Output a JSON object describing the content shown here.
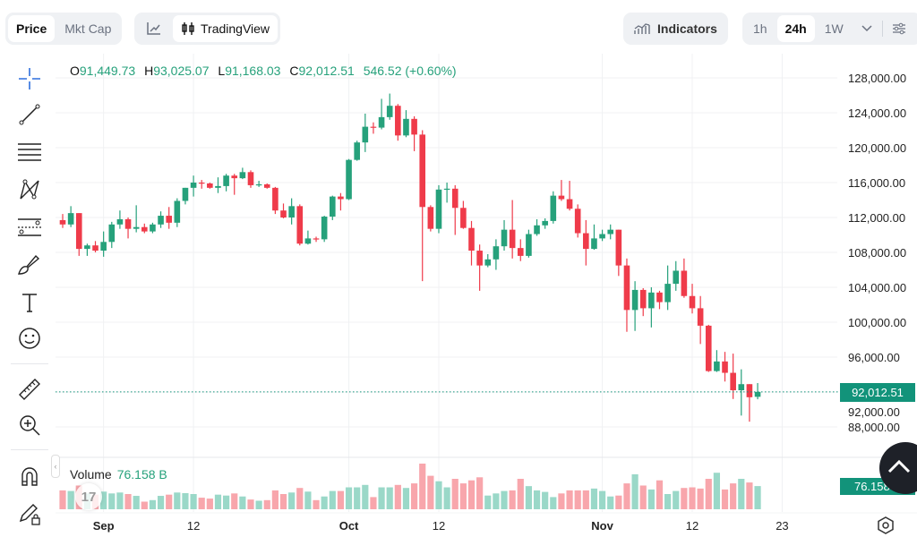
{
  "toolbar": {
    "price_label": "Price",
    "mktcap_label": "Mkt Cap",
    "chart_type_line_icon": "line-chart-icon",
    "tradingview_label": "TradingView",
    "indicators_label": "Indicators",
    "timeframes": [
      "1h",
      "24h",
      "1W"
    ],
    "selected_timeframe": "24h"
  },
  "ohlc": {
    "o_label": "O",
    "o": "91,449.73",
    "h_label": "H",
    "h": "93,025.07",
    "l_label": "L",
    "l": "91,168.03",
    "c_label": "C",
    "c": "92,012.51",
    "change": "546.52 (+0.60%)"
  },
  "volume": {
    "label": "Volume",
    "value": "76.158 B",
    "tag": "76.158 B"
  },
  "last_price_tag": "92,012.51",
  "logo_text": "17",
  "colors": {
    "up": "#26a17b",
    "down": "#ef3b4a",
    "vol_up": "#9ad8c8",
    "vol_down": "#f8a6ac",
    "last_price": "#12937a"
  },
  "chart_data": {
    "type": "candlestick",
    "price_ticks": [
      "128,000.00",
      "124,000.00",
      "120,000.00",
      "116,000.00",
      "112,000.00",
      "108,000.00",
      "104,000.00",
      "100,000.00",
      "96,000.00",
      "92,000.00",
      "88,000.00"
    ],
    "ylim": [
      88000,
      128000
    ],
    "time_ticks": [
      {
        "label": "Sep",
        "date": "Sep 1",
        "bold": true
      },
      {
        "label": "12",
        "date": "Sep 12"
      },
      {
        "label": "Oct",
        "date": "Oct 1",
        "bold": true
      },
      {
        "label": "12",
        "date": "Oct 12"
      },
      {
        "label": "Nov",
        "date": "Nov 1",
        "bold": true
      },
      {
        "label": "12",
        "date": "Nov 12"
      },
      {
        "label": "23",
        "date": "Nov 23"
      }
    ],
    "last_price": 92012.51,
    "candle_fields": [
      "date",
      "open",
      "high",
      "low",
      "close",
      "volume_B"
    ],
    "candles": [
      [
        "Aug 27",
        111700,
        112400,
        110800,
        111200,
        62
      ],
      [
        "Aug 28",
        111200,
        113300,
        110900,
        112500,
        60
      ],
      [
        "Aug 29",
        112500,
        112500,
        107600,
        108400,
        78
      ],
      [
        "Aug 30",
        108400,
        109000,
        107600,
        108800,
        52
      ],
      [
        "Aug 31",
        108800,
        109300,
        108000,
        108200,
        48
      ],
      [
        "Sep 1",
        108200,
        110400,
        107500,
        109200,
        58
      ],
      [
        "Sep 2",
        109200,
        111500,
        108500,
        111200,
        52
      ],
      [
        "Sep 3",
        111200,
        112800,
        110700,
        111800,
        55
      ],
      [
        "Sep 4",
        111800,
        112000,
        109600,
        110700,
        50
      ],
      [
        "Sep 5",
        110700,
        113400,
        110300,
        110900,
        44
      ],
      [
        "Sep 6",
        110900,
        111300,
        110200,
        110400,
        25
      ],
      [
        "Sep 7",
        110400,
        111400,
        110200,
        111200,
        30
      ],
      [
        "Sep 8",
        111200,
        112700,
        110800,
        112200,
        44
      ],
      [
        "Sep 9",
        112200,
        113200,
        110700,
        111400,
        48
      ],
      [
        "Sep 10",
        111400,
        114200,
        110900,
        113900,
        55
      ],
      [
        "Sep 11",
        113900,
        115400,
        113500,
        115400,
        53
      ],
      [
        "Sep 12",
        115400,
        116800,
        114400,
        116000,
        50
      ],
      [
        "Sep 13",
        116000,
        116300,
        115300,
        115900,
        38
      ],
      [
        "Sep 14",
        115900,
        116000,
        115300,
        115400,
        35
      ],
      [
        "Sep 15",
        115400,
        116600,
        114800,
        115600,
        48
      ],
      [
        "Sep 16",
        115600,
        117000,
        115000,
        116800,
        45
      ],
      [
        "Sep 17",
        116800,
        117000,
        114600,
        116500,
        52
      ],
      [
        "Sep 18",
        116500,
        117700,
        116400,
        117200,
        42
      ],
      [
        "Sep 19",
        117200,
        117400,
        115400,
        115700,
        32
      ],
      [
        "Sep 20",
        115700,
        116200,
        115500,
        115800,
        28
      ],
      [
        "Sep 21",
        115800,
        115900,
        115300,
        115400,
        30
      ],
      [
        "Sep 22",
        115400,
        115500,
        112400,
        112800,
        62
      ],
      [
        "Sep 23",
        112800,
        113600,
        111900,
        112000,
        50
      ],
      [
        "Sep 24",
        112000,
        114200,
        111200,
        113300,
        55
      ],
      [
        "Sep 25",
        113300,
        113500,
        108800,
        109000,
        70
      ],
      [
        "Sep 26",
        109000,
        110500,
        108900,
        109600,
        58
      ],
      [
        "Sep 27",
        109600,
        109800,
        109200,
        109500,
        30
      ],
      [
        "Sep 28",
        109500,
        112200,
        109200,
        112100,
        42
      ],
      [
        "Sep 29",
        112100,
        114500,
        111700,
        114400,
        60
      ],
      [
        "Sep 30",
        114400,
        114800,
        112800,
        114100,
        60
      ],
      [
        "Oct 1",
        114100,
        118700,
        114000,
        118600,
        72
      ],
      [
        "Oct 2",
        118600,
        120800,
        118500,
        120600,
        72
      ],
      [
        "Oct 3",
        120600,
        123900,
        119500,
        122400,
        80
      ],
      [
        "Oct 4",
        122400,
        122900,
        121600,
        122300,
        40
      ],
      [
        "Oct 5",
        122300,
        125600,
        122100,
        123500,
        72
      ],
      [
        "Oct 6",
        123500,
        126200,
        123200,
        124800,
        72
      ],
      [
        "Oct 7",
        124800,
        125000,
        120800,
        121400,
        80
      ],
      [
        "Oct 8",
        121400,
        124300,
        121200,
        123300,
        70
      ],
      [
        "Oct 9",
        123300,
        123600,
        119600,
        121500,
        85
      ],
      [
        "Oct 10",
        121500,
        122000,
        104700,
        113200,
        150
      ],
      [
        "Oct 11",
        113200,
        113400,
        110400,
        110700,
        110
      ],
      [
        "Oct 12",
        110700,
        115700,
        110200,
        115200,
        92
      ],
      [
        "Oct 13",
        115200,
        116000,
        113700,
        115300,
        72
      ],
      [
        "Oct 14",
        115300,
        115700,
        110000,
        113100,
        100
      ],
      [
        "Oct 15",
        113100,
        113900,
        110700,
        110800,
        85
      ],
      [
        "Oct 16",
        110800,
        111600,
        106500,
        108200,
        95
      ],
      [
        "Oct 17",
        108200,
        108900,
        103600,
        106500,
        105
      ],
      [
        "Oct 18",
        106500,
        107800,
        106300,
        107200,
        45
      ],
      [
        "Oct 19",
        107200,
        109500,
        106000,
        108700,
        52
      ],
      [
        "Oct 20",
        108700,
        111700,
        108200,
        110600,
        60
      ],
      [
        "Oct 21",
        110600,
        114000,
        107300,
        108500,
        62
      ],
      [
        "Oct 22",
        108500,
        109500,
        107000,
        107600,
        100
      ],
      [
        "Oct 23",
        107600,
        110600,
        107400,
        110100,
        76
      ],
      [
        "Oct 24",
        110100,
        111800,
        109900,
        111100,
        62
      ],
      [
        "Oct 25",
        111100,
        111900,
        110700,
        111600,
        57
      ],
      [
        "Oct 26",
        111600,
        115000,
        111300,
        114500,
        40
      ],
      [
        "Oct 27",
        114500,
        116300,
        113900,
        114100,
        52
      ],
      [
        "Oct 28",
        114100,
        116200,
        112800,
        113000,
        62
      ],
      [
        "Oct 29",
        113000,
        113500,
        109700,
        110200,
        62
      ],
      [
        "Oct 30",
        110200,
        111700,
        106500,
        108400,
        62
      ],
      [
        "Oct 31",
        108400,
        111200,
        108300,
        109600,
        68
      ],
      [
        "Nov 1",
        109600,
        110600,
        109300,
        110100,
        60
      ],
      [
        "Nov 2",
        110100,
        111200,
        109500,
        110600,
        42
      ],
      [
        "Nov 3",
        110600,
        110600,
        105300,
        106500,
        45
      ],
      [
        "Nov 4",
        106500,
        107300,
        98900,
        101400,
        85
      ],
      [
        "Nov 5",
        101400,
        104700,
        99000,
        103700,
        115
      ],
      [
        "Nov 6",
        103700,
        103900,
        100700,
        101600,
        78
      ],
      [
        "Nov 7",
        101600,
        104000,
        99400,
        103400,
        65
      ],
      [
        "Nov 8",
        103400,
        103600,
        101500,
        102300,
        95
      ],
      [
        "Nov 9",
        102300,
        106500,
        101400,
        104400,
        50
      ],
      [
        "Nov 10",
        104400,
        107000,
        103600,
        105900,
        60
      ],
      [
        "Nov 11",
        105900,
        107300,
        102800,
        103000,
        70
      ],
      [
        "Nov 12",
        103000,
        104400,
        101000,
        101600,
        72
      ],
      [
        "Nov 13",
        101600,
        103000,
        97500,
        99600,
        68
      ],
      [
        "Nov 14",
        99600,
        99700,
        94300,
        94400,
        100
      ],
      [
        "Nov 15",
        94400,
        96800,
        94300,
        95500,
        120
      ],
      [
        "Nov 16",
        95500,
        96600,
        93200,
        94200,
        65
      ],
      [
        "Nov 17",
        94200,
        96400,
        91200,
        92200,
        85
      ],
      [
        "Nov 18",
        92200,
        94600,
        89300,
        92900,
        100
      ],
      [
        "Nov 19",
        92900,
        92900,
        88600,
        91400,
        88
      ],
      [
        "Nov 20",
        91449.73,
        93025.07,
        91168.03,
        92012.51,
        76.158
      ]
    ]
  }
}
